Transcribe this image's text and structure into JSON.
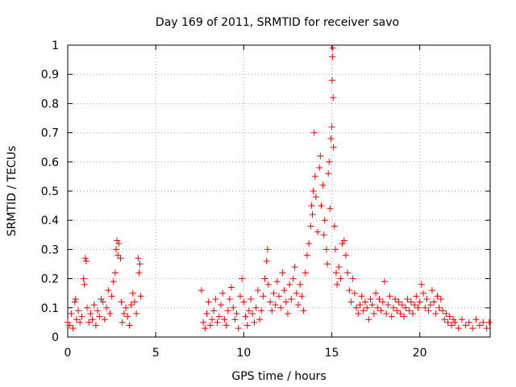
{
  "chart_data": {
    "type": "scatter",
    "title": "Day 169 of 2011, SRMTID for receiver savo",
    "xlabel": "GPS time / hours",
    "ylabel": "SRMTID / TECUs",
    "xlim": [
      0,
      24
    ],
    "ylim": [
      0,
      1
    ],
    "x_ticks": [
      0,
      5,
      10,
      15,
      20
    ],
    "x_tick_labels": [
      "0",
      "5",
      "10",
      "15",
      "20"
    ],
    "y_ticks": [
      0,
      0.1,
      0.2,
      0.3,
      0.4,
      0.5,
      0.6,
      0.7,
      0.8,
      0.9,
      1
    ],
    "y_tick_labels": [
      "0",
      "0.1",
      "0.2",
      "0.3",
      "0.4",
      "0.5",
      "0.6",
      "0.7",
      "0.8",
      "0.9",
      "1"
    ],
    "grid": true,
    "marker": "plus",
    "color": "#ee0000",
    "series": [
      {
        "name": "SRMTID",
        "points": [
          [
            0.0,
            0.05
          ],
          [
            0.1,
            0.04
          ],
          [
            0.2,
            0.08
          ],
          [
            0.3,
            0.03
          ],
          [
            0.4,
            0.12
          ],
          [
            0.45,
            0.13
          ],
          [
            0.5,
            0.06
          ],
          [
            0.6,
            0.09
          ],
          [
            0.7,
            0.05
          ],
          [
            0.8,
            0.07
          ],
          [
            0.9,
            0.2
          ],
          [
            0.95,
            0.18
          ],
          [
            1.0,
            0.27
          ],
          [
            1.05,
            0.26
          ],
          [
            1.1,
            0.1
          ],
          [
            1.2,
            0.05
          ],
          [
            1.3,
            0.08
          ],
          [
            1.4,
            0.06
          ],
          [
            1.5,
            0.11
          ],
          [
            1.6,
            0.04
          ],
          [
            1.7,
            0.09
          ],
          [
            1.8,
            0.07
          ],
          [
            1.9,
            0.13
          ],
          [
            2.0,
            0.12
          ],
          [
            2.1,
            0.06
          ],
          [
            2.2,
            0.1
          ],
          [
            2.3,
            0.16
          ],
          [
            2.4,
            0.08
          ],
          [
            2.5,
            0.14
          ],
          [
            2.6,
            0.19
          ],
          [
            2.7,
            0.22
          ],
          [
            2.75,
            0.3
          ],
          [
            2.8,
            0.33
          ],
          [
            2.85,
            0.28
          ],
          [
            2.9,
            0.32
          ],
          [
            3.0,
            0.27
          ],
          [
            3.05,
            0.12
          ],
          [
            3.1,
            0.05
          ],
          [
            3.2,
            0.08
          ],
          [
            3.3,
            0.1
          ],
          [
            3.4,
            0.07
          ],
          [
            3.5,
            0.04
          ],
          [
            3.6,
            0.11
          ],
          [
            3.7,
            0.15
          ],
          [
            3.8,
            0.12
          ],
          [
            3.9,
            0.08
          ],
          [
            4.0,
            0.27
          ],
          [
            4.05,
            0.22
          ],
          [
            4.1,
            0.25
          ],
          [
            4.15,
            0.14
          ],
          [
            7.6,
            0.16
          ],
          [
            7.7,
            0.05
          ],
          [
            7.8,
            0.03
          ],
          [
            7.9,
            0.08
          ],
          [
            8.0,
            0.12
          ],
          [
            8.1,
            0.04
          ],
          [
            8.2,
            0.06
          ],
          [
            8.3,
            0.09
          ],
          [
            8.4,
            0.13
          ],
          [
            8.5,
            0.05
          ],
          [
            8.6,
            0.07
          ],
          [
            8.7,
            0.11
          ],
          [
            8.8,
            0.15
          ],
          [
            8.9,
            0.06
          ],
          [
            9.0,
            0.04
          ],
          [
            9.1,
            0.09
          ],
          [
            9.2,
            0.13
          ],
          [
            9.3,
            0.17
          ],
          [
            9.4,
            0.1
          ],
          [
            9.5,
            0.06
          ],
          [
            9.6,
            0.08
          ],
          [
            9.7,
            0.03
          ],
          [
            9.8,
            0.14
          ],
          [
            9.9,
            0.2
          ],
          [
            10.0,
            0.12
          ],
          [
            10.1,
            0.07
          ],
          [
            10.2,
            0.04
          ],
          [
            10.3,
            0.09
          ],
          [
            10.4,
            0.13
          ],
          [
            10.5,
            0.08
          ],
          [
            10.6,
            0.05
          ],
          [
            10.7,
            0.1
          ],
          [
            10.8,
            0.16
          ],
          [
            10.9,
            0.06
          ],
          [
            11.0,
            0.09
          ],
          [
            11.1,
            0.14
          ],
          [
            11.2,
            0.2
          ],
          [
            11.3,
            0.26
          ],
          [
            11.35,
            0.3
          ],
          [
            11.4,
            0.18
          ],
          [
            11.5,
            0.12
          ],
          [
            11.6,
            0.09
          ],
          [
            11.7,
            0.15
          ],
          [
            11.8,
            0.11
          ],
          [
            11.9,
            0.19
          ],
          [
            12.0,
            0.14
          ],
          [
            12.1,
            0.1
          ],
          [
            12.2,
            0.22
          ],
          [
            12.3,
            0.16
          ],
          [
            12.4,
            0.12
          ],
          [
            12.5,
            0.08
          ],
          [
            12.6,
            0.18
          ],
          [
            12.7,
            0.13
          ],
          [
            12.8,
            0.2
          ],
          [
            12.9,
            0.24
          ],
          [
            13.0,
            0.15
          ],
          [
            13.1,
            0.11
          ],
          [
            13.2,
            0.18
          ],
          [
            13.3,
            0.14
          ],
          [
            13.4,
            0.09
          ],
          [
            13.5,
            0.22
          ],
          [
            13.6,
            0.28
          ],
          [
            13.7,
            0.32
          ],
          [
            13.8,
            0.38
          ],
          [
            13.85,
            0.45
          ],
          [
            13.9,
            0.42
          ],
          [
            13.95,
            0.5
          ],
          [
            14.0,
            0.7
          ],
          [
            14.05,
            0.55
          ],
          [
            14.1,
            0.48
          ],
          [
            14.2,
            0.36
          ],
          [
            14.3,
            0.58
          ],
          [
            14.35,
            0.62
          ],
          [
            14.4,
            0.45
          ],
          [
            14.5,
            0.52
          ],
          [
            14.55,
            0.35
          ],
          [
            14.6,
            0.4
          ],
          [
            14.7,
            0.3
          ],
          [
            14.75,
            0.25
          ],
          [
            14.8,
            0.56
          ],
          [
            14.85,
            0.6
          ],
          [
            14.9,
            0.44
          ],
          [
            14.95,
            0.68
          ],
          [
            15.0,
            0.72
          ],
          [
            15.02,
            0.88
          ],
          [
            15.04,
            0.96
          ],
          [
            15.06,
            0.99
          ],
          [
            15.08,
            0.82
          ],
          [
            15.1,
            0.65
          ],
          [
            15.15,
            0.38
          ],
          [
            15.2,
            0.3
          ],
          [
            15.25,
            0.22
          ],
          [
            15.3,
            0.18
          ],
          [
            15.4,
            0.24
          ],
          [
            15.5,
            0.2
          ],
          [
            15.6,
            0.32
          ],
          [
            15.7,
            0.33
          ],
          [
            15.8,
            0.28
          ],
          [
            15.9,
            0.22
          ],
          [
            16.0,
            0.16
          ],
          [
            16.1,
            0.12
          ],
          [
            16.2,
            0.2
          ],
          [
            16.3,
            0.15
          ],
          [
            16.4,
            0.1
          ],
          [
            16.5,
            0.08
          ],
          [
            16.6,
            0.11
          ],
          [
            16.7,
            0.14
          ],
          [
            16.8,
            0.09
          ],
          [
            16.9,
            0.12
          ],
          [
            17.0,
            0.1
          ],
          [
            17.1,
            0.06
          ],
          [
            17.2,
            0.13
          ],
          [
            17.3,
            0.11
          ],
          [
            17.4,
            0.08
          ],
          [
            17.5,
            0.15
          ],
          [
            17.6,
            0.1
          ],
          [
            17.7,
            0.13
          ],
          [
            17.8,
            0.09
          ],
          [
            17.9,
            0.12
          ],
          [
            18.0,
            0.19
          ],
          [
            18.1,
            0.08
          ],
          [
            18.2,
            0.11
          ],
          [
            18.3,
            0.14
          ],
          [
            18.4,
            0.07
          ],
          [
            18.5,
            0.1
          ],
          [
            18.6,
            0.13
          ],
          [
            18.7,
            0.09
          ],
          [
            18.8,
            0.12
          ],
          [
            18.9,
            0.08
          ],
          [
            19.0,
            0.11
          ],
          [
            19.1,
            0.07
          ],
          [
            19.2,
            0.1
          ],
          [
            19.3,
            0.13
          ],
          [
            19.4,
            0.09
          ],
          [
            19.5,
            0.12
          ],
          [
            19.6,
            0.08
          ],
          [
            19.7,
            0.11
          ],
          [
            19.8,
            0.14
          ],
          [
            19.9,
            0.1
          ],
          [
            20.0,
            0.12
          ],
          [
            20.1,
            0.18
          ],
          [
            20.2,
            0.15
          ],
          [
            20.3,
            0.1
          ],
          [
            20.4,
            0.13
          ],
          [
            20.5,
            0.09
          ],
          [
            20.6,
            0.11
          ],
          [
            20.7,
            0.16
          ],
          [
            20.8,
            0.12
          ],
          [
            20.9,
            0.08
          ],
          [
            21.0,
            0.14
          ],
          [
            21.1,
            0.1
          ],
          [
            21.2,
            0.13
          ],
          [
            21.3,
            0.09
          ],
          [
            21.4,
            0.06
          ],
          [
            21.5,
            0.08
          ],
          [
            21.6,
            0.05
          ],
          [
            21.7,
            0.07
          ],
          [
            21.8,
            0.04
          ],
          [
            21.9,
            0.06
          ],
          [
            22.0,
            0.05
          ],
          [
            22.2,
            0.03
          ],
          [
            22.4,
            0.06
          ],
          [
            22.6,
            0.04
          ],
          [
            22.8,
            0.05
          ],
          [
            23.0,
            0.03
          ],
          [
            23.2,
            0.06
          ],
          [
            23.4,
            0.04
          ],
          [
            23.6,
            0.05
          ],
          [
            23.8,
            0.03
          ],
          [
            23.95,
            0.05
          ]
        ]
      }
    ]
  }
}
